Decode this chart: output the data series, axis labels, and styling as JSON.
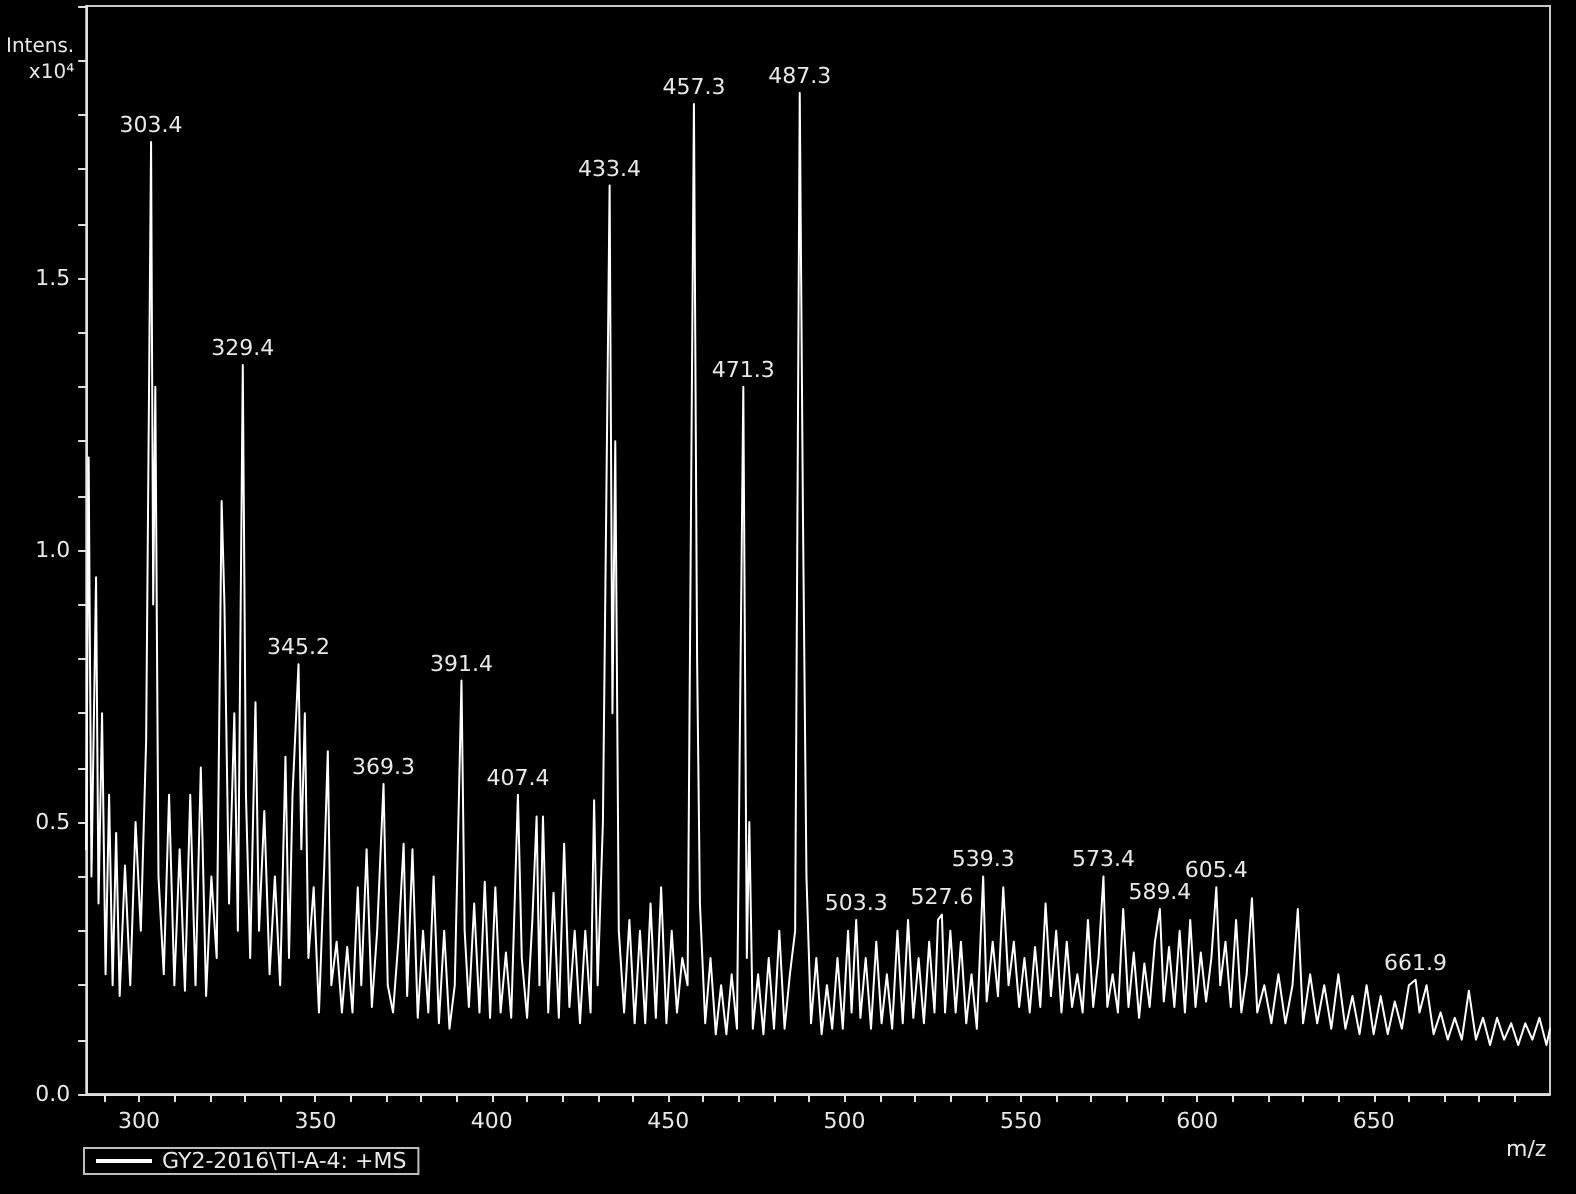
{
  "chart_data": {
    "type": "line",
    "xlabel": "m/z",
    "ylabel": "Intens.\nx10⁴",
    "xlim": [
      285,
      700
    ],
    "ylim": [
      0,
      2.0
    ],
    "xticks": [
      {
        "value": 290,
        "label": null
      },
      300,
      {
        "value": 310,
        "label": null
      },
      {
        "value": 320,
        "label": null
      },
      {
        "value": 330,
        "label": null
      },
      {
        "value": 340,
        "label": null
      },
      350,
      {
        "value": 360,
        "label": null
      },
      {
        "value": 370,
        "label": null
      },
      {
        "value": 380,
        "label": null
      },
      {
        "value": 390,
        "label": null
      },
      400,
      {
        "value": 410,
        "label": null
      },
      {
        "value": 420,
        "label": null
      },
      {
        "value": 430,
        "label": null
      },
      {
        "value": 440,
        "label": null
      },
      450,
      {
        "value": 460,
        "label": null
      },
      {
        "value": 470,
        "label": null
      },
      {
        "value": 480,
        "label": null
      },
      {
        "value": 490,
        "label": null
      },
      500,
      {
        "value": 510,
        "label": null
      },
      {
        "value": 520,
        "label": null
      },
      {
        "value": 530,
        "label": null
      },
      {
        "value": 540,
        "label": null
      },
      550,
      {
        "value": 560,
        "label": null
      },
      {
        "value": 570,
        "label": null
      },
      {
        "value": 580,
        "label": null
      },
      {
        "value": 590,
        "label": null
      },
      600,
      {
        "value": 610,
        "label": null
      },
      {
        "value": 620,
        "label": null
      },
      {
        "value": 630,
        "label": null
      },
      {
        "value": 640,
        "label": null
      },
      650,
      {
        "value": 660,
        "label": null
      },
      {
        "value": 670,
        "label": null
      },
      {
        "value": 680,
        "label": null
      },
      {
        "value": 690,
        "label": null
      }
    ],
    "yticks": [
      {
        "value": 0,
        "label": "0.0"
      },
      {
        "value": 0.1,
        "label": null
      },
      {
        "value": 0.2,
        "label": null
      },
      {
        "value": 0.3,
        "label": null
      },
      {
        "value": 0.4,
        "label": null
      },
      0.5,
      {
        "value": 0.6,
        "label": null
      },
      {
        "value": 0.7,
        "label": null
      },
      {
        "value": 0.8,
        "label": null
      },
      {
        "value": 0.9,
        "label": null
      },
      {
        "value": 1,
        "label": "1.0"
      },
      {
        "value": 1.1,
        "label": null
      },
      {
        "value": 1.2,
        "label": null
      },
      {
        "value": 1.3,
        "label": null
      },
      {
        "value": 1.4,
        "label": null
      },
      1.5,
      {
        "value": 1.6,
        "label": null
      },
      {
        "value": 1.7,
        "label": null
      },
      {
        "value": 1.8,
        "label": null
      },
      {
        "value": 1.9,
        "label": null
      },
      {
        "value": 2.0,
        "label": null
      }
    ],
    "legend": "bottom",
    "series": [
      {
        "name": "GY2-2016\\TI-A-4: +MS",
        "color": "#ffffff",
        "x": [
          285,
          285.7,
          286.5,
          287.8,
          288.5,
          289.5,
          290.5,
          291.5,
          292.5,
          293.5,
          294.5,
          296,
          297.5,
          299,
          300.5,
          302,
          303.4,
          304,
          304.6,
          305.5,
          307,
          308.5,
          310,
          311.5,
          313,
          314.5,
          316,
          317.5,
          319,
          320.5,
          322,
          323.4,
          324.2,
          325.5,
          327,
          328,
          329.4,
          330.3,
          331.5,
          333,
          334,
          335.5,
          337,
          338.5,
          340,
          341.5,
          342.5,
          343.5,
          345.2,
          346,
          347,
          348,
          349.5,
          351,
          352.5,
          353.5,
          354.5,
          356,
          357.5,
          359,
          360.5,
          362,
          363,
          364.5,
          366,
          367.5,
          369.3,
          370.5,
          372,
          373.5,
          375,
          376,
          377.5,
          379,
          380.5,
          382,
          383.5,
          385,
          386.5,
          388,
          389.5,
          391.4,
          392.3,
          393.5,
          395,
          396.5,
          398,
          399.5,
          401,
          402.5,
          404,
          405.5,
          407.4,
          408.5,
          410,
          411.5,
          412.7,
          413.5,
          414.5,
          416,
          417.5,
          419,
          420.5,
          422,
          423.5,
          425,
          426.5,
          428,
          429,
          430,
          431.5,
          433.4,
          434.2,
          435,
          436,
          437.5,
          439,
          440.5,
          442,
          443.5,
          445,
          446.5,
          448,
          449.5,
          451,
          452.5,
          454,
          455.5,
          457.3,
          458.2,
          459,
          460.5,
          462,
          463.5,
          465,
          466.5,
          468,
          469.5,
          471.3,
          472.3,
          473,
          474,
          475.5,
          477,
          478.5,
          480,
          481.5,
          483,
          484.5,
          486,
          487.3,
          488.2,
          489.2,
          490.5,
          492,
          493.5,
          495,
          496.5,
          498,
          499.5,
          501,
          502,
          503.3,
          504.5,
          506,
          507.5,
          509,
          510.5,
          512,
          513.5,
          515,
          516.5,
          518,
          519.5,
          521,
          522.5,
          524,
          525.5,
          526.5,
          527.6,
          528.5,
          530,
          531.5,
          533,
          534.5,
          536,
          537.5,
          539.3,
          540.3,
          542,
          543.5,
          545,
          546.5,
          548,
          549.5,
          551,
          552.5,
          554,
          555.5,
          557,
          558.5,
          560,
          561.5,
          563,
          564.5,
          566,
          567.5,
          569,
          570.5,
          572,
          573.4,
          574.5,
          576,
          577.5,
          579,
          580.5,
          582,
          583.5,
          585,
          586.5,
          588,
          589.4,
          590.5,
          592,
          593.5,
          595,
          596.5,
          598,
          599.5,
          601,
          602.5,
          604,
          605.4,
          606.5,
          608,
          609.5,
          611,
          612.5,
          614,
          615.5,
          617,
          619,
          621,
          623,
          625,
          627,
          628.5,
          630,
          632,
          634,
          636,
          638,
          640,
          642,
          644,
          646,
          648,
          650,
          652,
          654,
          656,
          658,
          660,
          661.9,
          663,
          665,
          667,
          669,
          671,
          673,
          675,
          677,
          679,
          681,
          683,
          685,
          687,
          689,
          691,
          693,
          695,
          697,
          699,
          700
        ],
        "values": [
          0.45,
          1.17,
          0.4,
          0.95,
          0.35,
          0.7,
          0.22,
          0.55,
          0.2,
          0.48,
          0.18,
          0.42,
          0.2,
          0.5,
          0.3,
          0.65,
          1.75,
          0.9,
          1.3,
          0.4,
          0.22,
          0.55,
          0.2,
          0.45,
          0.19,
          0.55,
          0.2,
          0.6,
          0.18,
          0.4,
          0.25,
          1.09,
          0.9,
          0.35,
          0.7,
          0.3,
          1.34,
          0.55,
          0.25,
          0.72,
          0.3,
          0.52,
          0.22,
          0.4,
          0.2,
          0.62,
          0.25,
          0.55,
          0.79,
          0.45,
          0.7,
          0.25,
          0.38,
          0.15,
          0.42,
          0.63,
          0.2,
          0.28,
          0.15,
          0.27,
          0.15,
          0.38,
          0.2,
          0.45,
          0.16,
          0.3,
          0.57,
          0.2,
          0.15,
          0.28,
          0.46,
          0.18,
          0.45,
          0.14,
          0.3,
          0.15,
          0.4,
          0.13,
          0.3,
          0.12,
          0.2,
          0.76,
          0.3,
          0.16,
          0.35,
          0.15,
          0.39,
          0.14,
          0.38,
          0.15,
          0.26,
          0.14,
          0.55,
          0.25,
          0.14,
          0.32,
          0.51,
          0.2,
          0.51,
          0.15,
          0.37,
          0.14,
          0.46,
          0.16,
          0.3,
          0.13,
          0.3,
          0.15,
          0.54,
          0.2,
          0.5,
          1.67,
          0.7,
          1.2,
          0.3,
          0.15,
          0.32,
          0.13,
          0.3,
          0.13,
          0.35,
          0.14,
          0.38,
          0.13,
          0.3,
          0.15,
          0.25,
          0.2,
          1.82,
          0.8,
          0.35,
          0.13,
          0.25,
          0.11,
          0.2,
          0.11,
          0.22,
          0.12,
          1.3,
          0.25,
          0.5,
          0.12,
          0.22,
          0.11,
          0.25,
          0.12,
          0.3,
          0.12,
          0.22,
          0.3,
          1.84,
          1.07,
          0.4,
          0.13,
          0.25,
          0.11,
          0.2,
          0.12,
          0.25,
          0.12,
          0.3,
          0.15,
          0.32,
          0.14,
          0.25,
          0.12,
          0.28,
          0.13,
          0.22,
          0.12,
          0.3,
          0.13,
          0.32,
          0.14,
          0.25,
          0.13,
          0.28,
          0.15,
          0.32,
          0.33,
          0.15,
          0.3,
          0.15,
          0.28,
          0.13,
          0.22,
          0.12,
          0.4,
          0.17,
          0.28,
          0.18,
          0.38,
          0.2,
          0.28,
          0.16,
          0.25,
          0.15,
          0.27,
          0.16,
          0.35,
          0.18,
          0.3,
          0.15,
          0.28,
          0.16,
          0.22,
          0.15,
          0.32,
          0.16,
          0.25,
          0.4,
          0.16,
          0.22,
          0.15,
          0.34,
          0.16,
          0.26,
          0.14,
          0.24,
          0.16,
          0.28,
          0.34,
          0.17,
          0.27,
          0.16,
          0.3,
          0.15,
          0.32,
          0.16,
          0.26,
          0.17,
          0.25,
          0.38,
          0.2,
          0.28,
          0.16,
          0.32,
          0.15,
          0.22,
          0.36,
          0.15,
          0.2,
          0.13,
          0.22,
          0.13,
          0.2,
          0.34,
          0.13,
          0.22,
          0.13,
          0.2,
          0.12,
          0.22,
          0.12,
          0.18,
          0.11,
          0.2,
          0.11,
          0.18,
          0.11,
          0.17,
          0.12,
          0.2,
          0.21,
          0.15,
          0.2,
          0.11,
          0.15,
          0.1,
          0.14,
          0.1,
          0.19,
          0.1,
          0.14,
          0.09,
          0.14,
          0.1,
          0.13,
          0.09,
          0.13,
          0.1,
          0.14,
          0.09,
          0.12
        ]
      }
    ],
    "annotations": [
      {
        "text": "303.4",
        "x": 303.4,
        "y": 1.75
      },
      {
        "text": "329.4",
        "x": 329.4,
        "y": 1.34
      },
      {
        "text": "345.2",
        "x": 345.2,
        "y": 0.79
      },
      {
        "text": "369.3",
        "x": 369.3,
        "y": 0.57
      },
      {
        "text": "391.4",
        "x": 391.4,
        "y": 0.76
      },
      {
        "text": "407.4",
        "x": 407.4,
        "y": 0.55
      },
      {
        "text": "433.4",
        "x": 433.4,
        "y": 1.67
      },
      {
        "text": "457.3",
        "x": 457.3,
        "y": 1.82
      },
      {
        "text": "471.3",
        "x": 471.3,
        "y": 1.3
      },
      {
        "text": "487.3",
        "x": 487.3,
        "y": 1.84
      },
      {
        "text": "503.3",
        "x": 503.3,
        "y": 0.32
      },
      {
        "text": "527.6",
        "x": 527.6,
        "y": 0.33
      },
      {
        "text": "539.3",
        "x": 539.3,
        "y": 0.4
      },
      {
        "text": "573.4",
        "x": 573.4,
        "y": 0.4
      },
      {
        "text": "589.4",
        "x": 589.4,
        "y": 0.34
      },
      {
        "text": "605.4",
        "x": 605.4,
        "y": 0.38
      },
      {
        "text": "661.9",
        "x": 661.9,
        "y": 0.21
      }
    ]
  }
}
